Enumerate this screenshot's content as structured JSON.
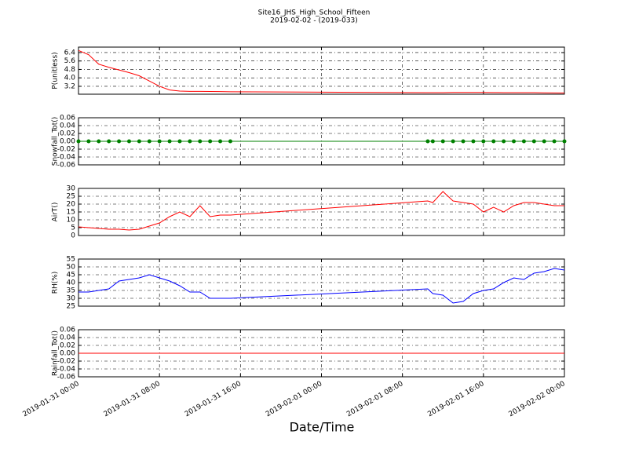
{
  "chart_data": {
    "type": "line",
    "title": "Site16_JHS_High_School_Fifteen",
    "subtitle": "2019-02-02 - (2019-033)",
    "xlabel": "Date/Time",
    "grid": true,
    "x": [
      "2019-01-31 00:00",
      "2019-01-31 01:00",
      "2019-01-31 02:00",
      "2019-01-31 03:00",
      "2019-01-31 04:00",
      "2019-01-31 05:00",
      "2019-01-31 06:00",
      "2019-01-31 07:00",
      "2019-01-31 08:00",
      "2019-01-31 09:00",
      "2019-01-31 10:00",
      "2019-01-31 11:00",
      "2019-01-31 12:00",
      "2019-01-31 13:00",
      "2019-01-31 14:00",
      "2019-01-31 15:00",
      "2019-02-01 10:30",
      "2019-02-01 11:00",
      "2019-02-01 12:00",
      "2019-02-01 13:00",
      "2019-02-01 14:00",
      "2019-02-01 15:00",
      "2019-02-01 16:00",
      "2019-02-01 17:00",
      "2019-02-01 18:00",
      "2019-02-01 19:00",
      "2019-02-01 20:00",
      "2019-02-01 21:00",
      "2019-02-01 22:00",
      "2019-02-01 23:00",
      "2019-02-02 00:00"
    ],
    "xlim": [
      "2019-01-31 00:00",
      "2019-02-02 00:00"
    ],
    "xticks": [
      "2019-01-31 00:00",
      "2019-01-31 08:00",
      "2019-01-31 16:00",
      "2019-02-01 00:00",
      "2019-02-01 08:00",
      "2019-02-01 16:00",
      "2019-02-02 00:00"
    ],
    "panels": [
      {
        "ylabel": "P(unitless)",
        "color": "#ff0000",
        "markers": false,
        "ylim": [
          2.45,
          6.92
        ],
        "yticks": [
          3.2,
          {
            "value": 4,
            "label": "4.0"
          },
          4.8,
          5.6,
          6.4
        ],
        "values": [
          6.6,
          6.2,
          5.3,
          5.0,
          4.75,
          4.5,
          4.2,
          3.7,
          3.2,
          2.85,
          2.75,
          2.72,
          2.72,
          2.71,
          2.7,
          2.68,
          2.6,
          2.6,
          2.6,
          2.62,
          2.62,
          2.62,
          2.62,
          2.61,
          2.6,
          2.6,
          2.6,
          2.6,
          2.58,
          2.57,
          2.56
        ]
      },
      {
        "ylabel": "Snowfall_Tot()",
        "color": "#008000",
        "markers": true,
        "ylim": [
          -0.06,
          0.06
        ],
        "yticks": [
          -0.06,
          -0.04,
          -0.02,
          {
            "value": 0,
            "label": "0.00"
          },
          0.02,
          0.04,
          0.06
        ],
        "values": [
          0,
          0,
          0,
          0,
          0,
          0,
          0,
          0,
          0,
          0,
          0,
          0,
          0,
          0,
          0,
          0,
          0,
          0,
          0,
          0,
          0,
          0,
          0,
          0,
          0,
          0,
          0,
          0,
          0,
          0,
          0
        ]
      },
      {
        "ylabel": "AirT()",
        "color": "#ff0000",
        "markers": false,
        "ylim": [
          0,
          30
        ],
        "yticks": [
          0,
          5,
          10,
          15,
          20,
          25,
          30
        ],
        "values": [
          5.5,
          5,
          4.5,
          4,
          4,
          3.5,
          4,
          6,
          8,
          12,
          15,
          12,
          19,
          12,
          13,
          13,
          22,
          21,
          28,
          22,
          21,
          20,
          15,
          18,
          15,
          19,
          21,
          21,
          20,
          19,
          19
        ]
      },
      {
        "ylabel": "RH(%)",
        "color": "#0000ff",
        "markers": false,
        "ylim": [
          25,
          55
        ],
        "yticks": [
          25,
          30,
          35,
          40,
          45,
          50,
          55
        ],
        "values": [
          34,
          34,
          35,
          36,
          41,
          42,
          43,
          45,
          43,
          41,
          38,
          34,
          34,
          30,
          30,
          30,
          36,
          33,
          32,
          27,
          28,
          33,
          35,
          36,
          40,
          43,
          42,
          46,
          47,
          49,
          48
        ]
      },
      {
        "ylabel": "Rainfall_Tot()",
        "color": "#ff0000",
        "markers": false,
        "ylim": [
          -0.06,
          0.06
        ],
        "yticks": [
          -0.06,
          -0.04,
          -0.02,
          {
            "value": 0,
            "label": "0.00"
          },
          0.02,
          0.04,
          0.06
        ],
        "values": [
          0,
          0,
          0,
          0,
          0,
          0,
          0,
          0,
          0,
          0,
          0,
          0,
          0,
          0,
          0,
          0,
          0,
          0,
          0,
          0,
          0,
          0,
          0,
          0,
          0,
          0,
          0,
          0,
          0,
          0,
          0
        ]
      }
    ]
  }
}
